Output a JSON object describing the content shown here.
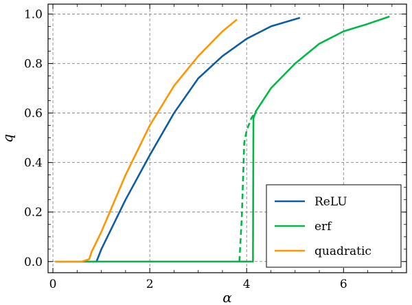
{
  "chart_data": {
    "type": "line",
    "xlabel": "α",
    "ylabel": "q",
    "xlim": [
      -0.1,
      7.3
    ],
    "ylim": [
      -0.045,
      1.04
    ],
    "xticks": [
      0,
      2,
      4,
      6
    ],
    "xtick_labels": [
      "0",
      "2",
      "4",
      "6"
    ],
    "yticks": [
      0.0,
      0.2,
      0.4,
      0.6,
      0.8,
      1.0
    ],
    "ytick_labels": [
      "0.0",
      "0.2",
      "0.4",
      "0.6",
      "0.8",
      "1.0"
    ],
    "grid": true,
    "legend_position": "lower-right",
    "series": [
      {
        "name": "ReLU",
        "color": "#0C5DA5",
        "style": "solid",
        "x": [
          0.05,
          0.2,
          0.4,
          0.6,
          0.8,
          0.9,
          1.0,
          1.2,
          1.5,
          2.0,
          2.5,
          3.0,
          3.5,
          4.0,
          4.5,
          5.1
        ],
        "y": [
          0.0,
          0.0,
          0.0,
          0.0,
          0.0,
          0.0,
          0.05,
          0.13,
          0.25,
          0.43,
          0.6,
          0.74,
          0.83,
          0.9,
          0.95,
          0.985
        ]
      },
      {
        "name": "erf",
        "color": "#00B945",
        "style": "solid",
        "x": [
          0.05,
          0.5,
          1.0,
          2.0,
          3.0,
          3.5,
          4.0,
          4.13,
          4.14,
          4.2,
          4.5,
          5.0,
          5.5,
          6.0,
          6.5,
          6.95
        ],
        "y": [
          0.0,
          0.0,
          0.0,
          0.0,
          0.0,
          0.0,
          0.0,
          0.0,
          0.58,
          0.61,
          0.7,
          0.8,
          0.88,
          0.93,
          0.96,
          0.99
        ]
      },
      {
        "name": "",
        "color": "#00B945",
        "style": "dashed",
        "x": [
          3.85,
          3.9,
          3.93,
          3.95,
          4.0,
          4.1,
          4.2
        ],
        "y": [
          0.0,
          0.18,
          0.36,
          0.48,
          0.53,
          0.58,
          0.61
        ]
      },
      {
        "name": "quadratic",
        "color": "#FF9500",
        "style": "solid",
        "x": [
          0.05,
          0.3,
          0.6,
          0.75,
          0.8,
          1.0,
          1.5,
          2.0,
          2.5,
          3.0,
          3.5,
          3.8
        ],
        "y": [
          0.0,
          0.0,
          0.0,
          0.01,
          0.04,
          0.12,
          0.35,
          0.55,
          0.71,
          0.83,
          0.93,
          0.978
        ]
      }
    ]
  }
}
